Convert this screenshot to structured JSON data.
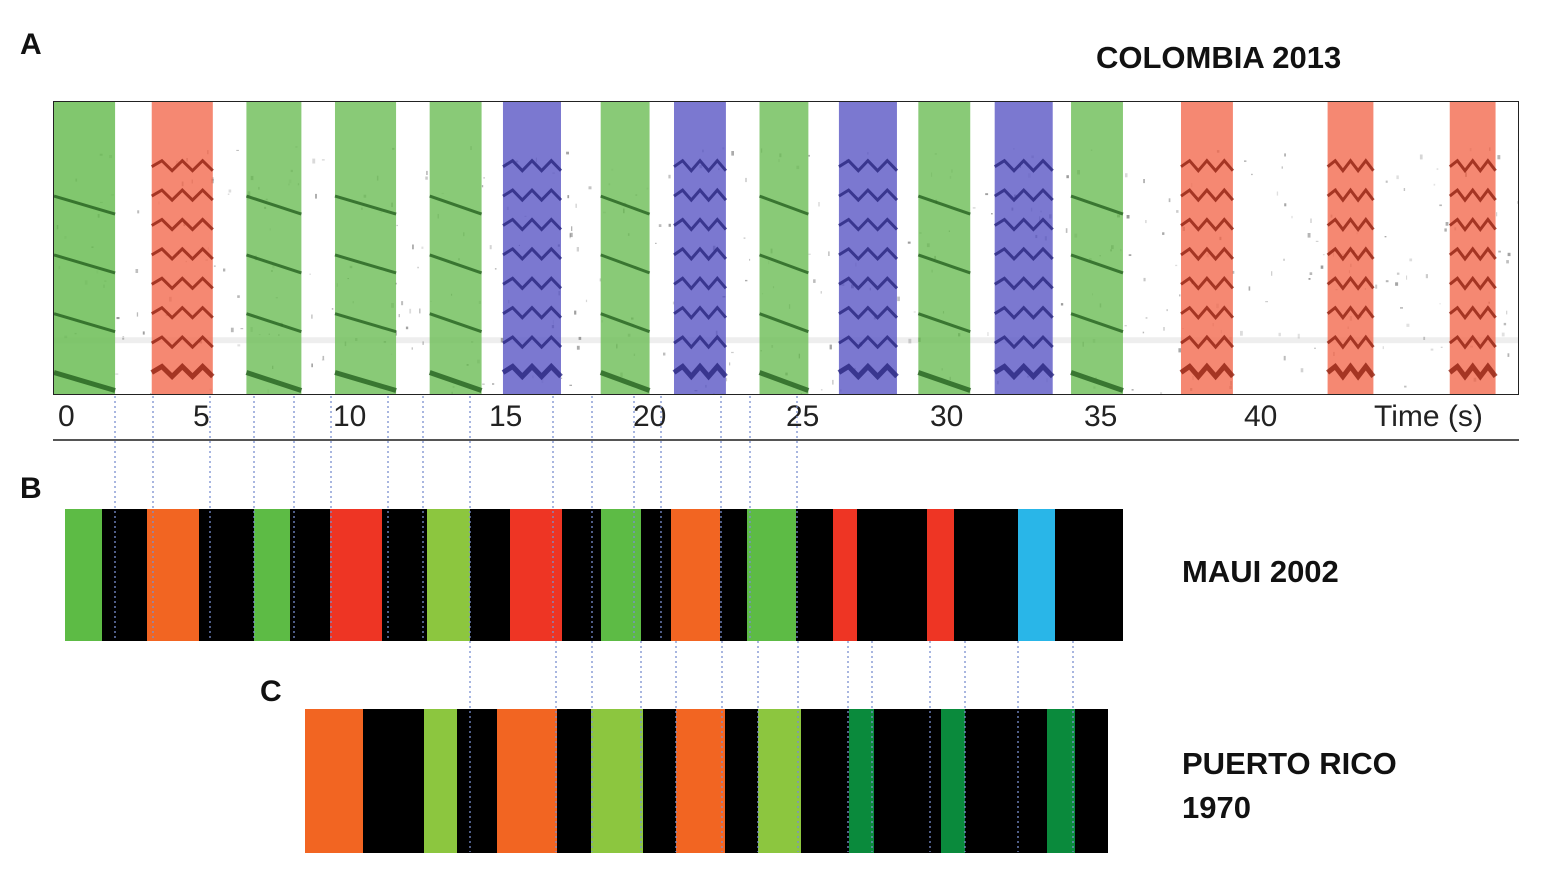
{
  "panels": {
    "a": {
      "letter": "A",
      "title": "COLOMBIA 2013"
    },
    "b": {
      "letter": "B",
      "title": "MAUI 2002"
    },
    "c": {
      "letter": "C",
      "title_line1": "PUERTO RICO",
      "title_line2": "1970"
    }
  },
  "axis": {
    "ticks": [
      "0",
      "5",
      "10",
      "15",
      "20",
      "25",
      "30",
      "35",
      "40"
    ],
    "label": "Time (s)"
  },
  "colors": {
    "green": "#5dbb45",
    "light_green": "#8cc63f",
    "dark_green": "#0a8a3c",
    "orange": "#f26522",
    "red": "#ee3524",
    "blue": "#29b6e8",
    "black": "#000000",
    "spec_green": "#6bbd55",
    "spec_red": "#f26a4f",
    "spec_blue": "#5a56c4",
    "guide": "#7a8fd0"
  },
  "spectrogram_highlights": [
    {
      "color": "spec_green",
      "start": 0.0,
      "end": 2.0,
      "dark": true
    },
    {
      "color": "spec_red",
      "start": 3.2,
      "end": 5.2
    },
    {
      "color": "spec_green",
      "start": 6.3,
      "end": 8.1
    },
    {
      "color": "spec_green",
      "start": 9.2,
      "end": 11.2
    },
    {
      "color": "spec_green",
      "start": 12.3,
      "end": 14.0
    },
    {
      "color": "spec_blue",
      "start": 14.7,
      "end": 16.6
    },
    {
      "color": "spec_green",
      "start": 17.9,
      "end": 19.5
    },
    {
      "color": "spec_blue",
      "start": 20.3,
      "end": 22.0
    },
    {
      "color": "spec_green",
      "start": 23.1,
      "end": 24.7
    },
    {
      "color": "spec_blue",
      "start": 25.7,
      "end": 27.6
    },
    {
      "color": "spec_green",
      "start": 28.3,
      "end": 30.0
    },
    {
      "color": "spec_blue",
      "start": 30.8,
      "end": 32.7
    },
    {
      "color": "spec_green",
      "start": 33.3,
      "end": 35.0
    },
    {
      "color": "spec_red",
      "start": 36.9,
      "end": 38.6
    },
    {
      "color": "spec_red",
      "start": 41.7,
      "end": 43.2
    },
    {
      "color": "spec_red",
      "start": 45.7,
      "end": 47.2
    }
  ],
  "maui_segments": [
    {
      "color": "green",
      "start": 0.0,
      "end": 1.2
    },
    {
      "color": "black",
      "start": 1.2,
      "end": 2.7
    },
    {
      "color": "orange",
      "start": 2.7,
      "end": 4.4
    },
    {
      "color": "black",
      "start": 4.4,
      "end": 6.2
    },
    {
      "color": "green",
      "start": 6.2,
      "end": 7.4
    },
    {
      "color": "black",
      "start": 7.4,
      "end": 8.7
    },
    {
      "color": "red",
      "start": 8.7,
      "end": 10.4
    },
    {
      "color": "black",
      "start": 10.4,
      "end": 11.9
    },
    {
      "color": "light_green",
      "start": 11.9,
      "end": 13.3
    },
    {
      "color": "black",
      "start": 13.3,
      "end": 14.6
    },
    {
      "color": "red",
      "start": 14.6,
      "end": 16.3
    },
    {
      "color": "black",
      "start": 16.3,
      "end": 17.6
    },
    {
      "color": "green",
      "start": 17.6,
      "end": 18.9
    },
    {
      "color": "black",
      "start": 18.9,
      "end": 19.9
    },
    {
      "color": "orange",
      "start": 19.9,
      "end": 21.5
    },
    {
      "color": "black",
      "start": 21.5,
      "end": 22.4
    },
    {
      "color": "green",
      "start": 22.4,
      "end": 24.0
    },
    {
      "color": "black",
      "start": 24.0,
      "end": 25.2
    },
    {
      "color": "red",
      "start": 25.2,
      "end": 26.0
    },
    {
      "color": "black",
      "start": 26.0,
      "end": 28.3
    },
    {
      "color": "red",
      "start": 28.3,
      "end": 29.2
    },
    {
      "color": "black",
      "start": 29.2,
      "end": 31.3
    },
    {
      "color": "blue",
      "start": 31.3,
      "end": 32.5
    },
    {
      "color": "black",
      "start": 32.5,
      "end": 34.7
    }
  ],
  "puerto_rico_segments": [
    {
      "color": "orange",
      "start": 0.0,
      "end": 1.9
    },
    {
      "color": "black",
      "start": 1.9,
      "end": 3.9
    },
    {
      "color": "light_green",
      "start": 3.9,
      "end": 5.0
    },
    {
      "color": "black",
      "start": 5.0,
      "end": 6.3
    },
    {
      "color": "orange",
      "start": 6.3,
      "end": 8.3
    },
    {
      "color": "black",
      "start": 8.3,
      "end": 9.4
    },
    {
      "color": "light_green",
      "start": 9.4,
      "end": 11.1
    },
    {
      "color": "black",
      "start": 11.1,
      "end": 12.2
    },
    {
      "color": "orange",
      "start": 12.2,
      "end": 13.8
    },
    {
      "color": "black",
      "start": 13.8,
      "end": 14.9
    },
    {
      "color": "light_green",
      "start": 14.9,
      "end": 16.3
    },
    {
      "color": "black",
      "start": 16.3,
      "end": 17.9
    },
    {
      "color": "dark_green",
      "start": 17.9,
      "end": 18.7
    },
    {
      "color": "black",
      "start": 18.7,
      "end": 20.9
    },
    {
      "color": "dark_green",
      "start": 20.9,
      "end": 21.7
    },
    {
      "color": "black",
      "start": 21.7,
      "end": 24.4
    },
    {
      "color": "dark_green",
      "start": 24.4,
      "end": 25.3
    },
    {
      "color": "black",
      "start": 25.3,
      "end": 26.4
    }
  ]
}
